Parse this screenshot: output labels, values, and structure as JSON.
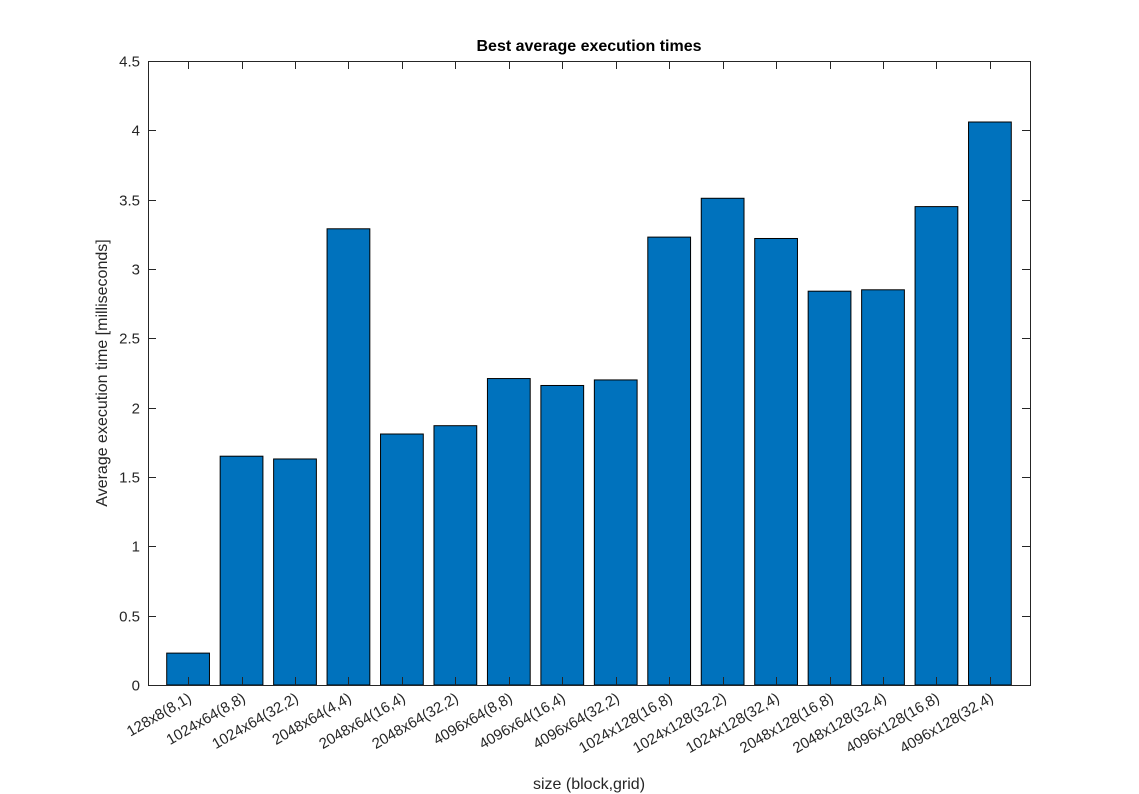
{
  "chart_data": {
    "type": "bar",
    "title": "Best average execution times",
    "xlabel": "size (block,grid)",
    "ylabel": "Average execution time [milliseconds]",
    "ylim": [
      0,
      4.5
    ],
    "yticks": [
      0,
      0.5,
      1,
      1.5,
      2,
      2.5,
      3,
      3.5,
      4,
      4.5
    ],
    "ytick_labels": [
      "0",
      "0.5",
      "1",
      "1.5",
      "2",
      "2.5",
      "3",
      "3.5",
      "4",
      "4.5"
    ],
    "grid": false,
    "bar_color": "#0072BD",
    "categories": [
      "128x8(8,1)",
      "1024x64(8,8)",
      "1024x64(32,2)",
      "2048x64(4,4)",
      "2048x64(16,4)",
      "2048x64(32,2)",
      "4096x64(8,8)",
      "4096x64(16,4)",
      "4096x64(32,2)",
      "1024x128(16,8)",
      "1024x128(32,2)",
      "1024x128(32,4)",
      "2048x128(16,8)",
      "2048x128(32,4)",
      "4096x128(16,8)",
      "4096x128(32,4)"
    ],
    "values": [
      0.23,
      1.65,
      1.63,
      3.29,
      1.81,
      1.87,
      2.21,
      2.16,
      2.2,
      3.23,
      3.51,
      3.22,
      2.84,
      2.85,
      3.45,
      4.06
    ]
  }
}
